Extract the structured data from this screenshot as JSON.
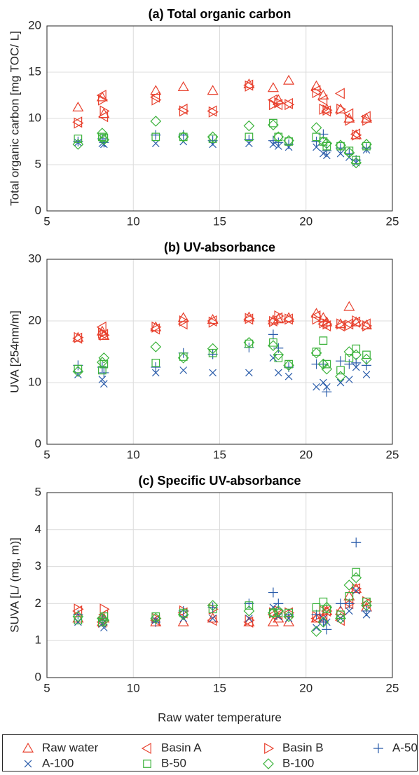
{
  "charts": [
    {
      "type": "scatter",
      "title": "(a) Total organic carbon",
      "ylabel": "Total organic carbon [mg TOC/ L]",
      "x": [
        6.8,
        8.2,
        8.3,
        11.3,
        12.9,
        14.6,
        16.7,
        18.1,
        18.4,
        19.0,
        20.6,
        21.0,
        21.2,
        22.0,
        22.5,
        22.9,
        23.5
      ],
      "xlim": [
        5,
        25
      ],
      "xticks": [
        5,
        10,
        15,
        20,
        25
      ],
      "ylim": [
        0,
        20
      ],
      "yticks": [
        0,
        5,
        10,
        15,
        20
      ],
      "grid": true,
      "series": [
        {
          "name": "Raw water",
          "color": "#e8412e",
          "marker": "triangle-up",
          "values": [
            11.2,
            12.3,
            10.5,
            13.0,
            13.4,
            13.0,
            13.7,
            13.3,
            12.0,
            14.1,
            13.5,
            12.5,
            11.0,
            11.0,
            10.0,
            8.2,
            10.0
          ]
        },
        {
          "name": "Basin A",
          "color": "#e8412e",
          "marker": "triangle-left",
          "values": [
            9.6,
            12.5,
            10.2,
            12.3,
            11.0,
            10.8,
            13.6,
            12.0,
            11.5,
            11.6,
            13.0,
            12.0,
            10.8,
            12.7,
            10.5,
            8.3,
            10.2
          ]
        },
        {
          "name": "Basin B",
          "color": "#e8412e",
          "marker": "triangle-right",
          "values": [
            9.5,
            12.0,
            10.8,
            12.0,
            10.8,
            10.7,
            13.5,
            11.5,
            11.7,
            11.5,
            12.8,
            11.0,
            10.9,
            11.0,
            9.8,
            8.2,
            9.8
          ]
        },
        {
          "name": "A-50",
          "color": "#2a5caa",
          "marker": "plus",
          "values": [
            7.5,
            7.8,
            7.4,
            8.2,
            8.2,
            7.6,
            7.7,
            7.6,
            7.4,
            7.2,
            7.5,
            8.3,
            6.5,
            6.8,
            6.2,
            5.5,
            6.8
          ]
        },
        {
          "name": "A-100",
          "color": "#2a5caa",
          "marker": "cross",
          "values": [
            7.4,
            7.3,
            7.2,
            7.3,
            7.5,
            7.2,
            7.3,
            7.2,
            7.0,
            6.9,
            6.9,
            6.2,
            6.0,
            6.2,
            5.8,
            5.2,
            6.6
          ]
        },
        {
          "name": "B-50",
          "color": "#3cb33c",
          "marker": "square",
          "values": [
            7.8,
            8.0,
            7.9,
            8.0,
            8.0,
            7.8,
            8.0,
            9.5,
            8.0,
            7.5,
            8.0,
            7.5,
            7.0,
            7.0,
            6.5,
            5.5,
            7.0
          ]
        },
        {
          "name": "B-100",
          "color": "#3cb33c",
          "marker": "diamond",
          "values": [
            7.2,
            8.4,
            7.7,
            9.7,
            8.0,
            8.0,
            9.2,
            9.3,
            8.0,
            7.6,
            9.0,
            7.5,
            7.3,
            7.1,
            6.3,
            5.2,
            7.2
          ]
        }
      ]
    },
    {
      "type": "scatter",
      "title": "(b) UV-absorbance",
      "ylabel": "UVA [254nm/m]",
      "x": [
        6.8,
        8.2,
        8.3,
        11.3,
        12.9,
        14.6,
        16.7,
        18.1,
        18.4,
        19.0,
        20.6,
        21.0,
        21.2,
        22.0,
        22.5,
        22.9,
        23.5
      ],
      "xlim": [
        5,
        25
      ],
      "xticks": [
        5,
        10,
        15,
        20,
        25
      ],
      "ylim": [
        0,
        30
      ],
      "yticks": [
        0,
        10,
        20,
        30
      ],
      "grid": true,
      "series": [
        {
          "name": "Raw water",
          "color": "#e8412e",
          "marker": "triangle-up",
          "values": [
            17.3,
            18.3,
            17.6,
            19.0,
            20.5,
            20.2,
            20.6,
            20.1,
            20.3,
            20.5,
            21.2,
            20.5,
            19.8,
            19.5,
            22.3,
            19.8,
            19.3
          ]
        },
        {
          "name": "Basin A",
          "color": "#e8412e",
          "marker": "triangle-left",
          "values": [
            17.2,
            19.0,
            17.8,
            18.7,
            19.5,
            20.0,
            20.3,
            20.0,
            20.5,
            20.3,
            20.8,
            19.5,
            19.2,
            19.2,
            19.5,
            19.8,
            19.5
          ]
        },
        {
          "name": "Basin B",
          "color": "#e8412e",
          "marker": "triangle-right",
          "values": [
            17.3,
            18.0,
            17.7,
            19.0,
            20.0,
            19.8,
            20.4,
            19.9,
            20.8,
            20.3,
            20.3,
            19.7,
            19.5,
            19.5,
            19.3,
            20.0,
            19.2
          ]
        },
        {
          "name": "A-50",
          "color": "#2a5caa",
          "marker": "plus",
          "values": [
            12.8,
            12.5,
            11.6,
            12.5,
            14.8,
            14.6,
            15.7,
            17.8,
            15.6,
            12.5,
            13.0,
            13.0,
            8.5,
            13.5,
            13.0,
            13.2,
            12.8
          ]
        },
        {
          "name": "A-100",
          "color": "#2a5caa",
          "marker": "cross",
          "values": [
            11.3,
            10.5,
            9.8,
            11.6,
            12.0,
            11.6,
            11.6,
            14.0,
            11.6,
            11.0,
            9.3,
            10.0,
            9.3,
            10.0,
            10.5,
            12.5,
            11.3
          ]
        },
        {
          "name": "B-50",
          "color": "#3cb33c",
          "marker": "square",
          "values": [
            12.2,
            12.0,
            13.0,
            13.2,
            14.2,
            14.8,
            16.3,
            16.5,
            14.0,
            13.0,
            15.0,
            16.8,
            13.0,
            12.0,
            14.0,
            15.5,
            14.5
          ]
        },
        {
          "name": "B-100",
          "color": "#3cb33c",
          "marker": "diamond",
          "values": [
            11.8,
            13.3,
            14.0,
            15.8,
            14.0,
            15.5,
            16.5,
            16.0,
            14.5,
            12.8,
            14.8,
            13.0,
            12.2,
            11.0,
            15.0,
            14.5,
            13.8
          ]
        }
      ]
    },
    {
      "type": "scatter",
      "title": "(c) Specific UV-absorbance",
      "ylabel": "SUVA [L/ (mg, m)]",
      "xlabel": "Raw water temperature",
      "x": [
        6.8,
        8.2,
        8.3,
        11.3,
        12.9,
        14.6,
        16.7,
        18.1,
        18.4,
        19.0,
        20.6,
        21.0,
        21.2,
        22.0,
        22.5,
        22.9,
        23.5
      ],
      "xlim": [
        5,
        25
      ],
      "xticks": [
        5,
        10,
        15,
        20,
        25
      ],
      "ylim": [
        0,
        5
      ],
      "yticks": [
        0,
        1,
        2,
        3,
        4,
        5
      ],
      "grid": true,
      "series": [
        {
          "name": "Raw water",
          "color": "#e8412e",
          "marker": "triangle-up",
          "values": [
            1.6,
            1.5,
            1.6,
            1.5,
            1.5,
            1.6,
            1.5,
            1.5,
            1.6,
            1.5,
            1.6,
            1.6,
            1.8,
            1.8,
            2.2,
            2.4,
            1.9
          ]
        },
        {
          "name": "Basin A",
          "color": "#e8412e",
          "marker": "triangle-left",
          "values": [
            1.8,
            1.5,
            1.7,
            1.55,
            1.75,
            1.55,
            1.5,
            1.7,
            1.7,
            1.75,
            1.6,
            1.6,
            1.8,
            1.55,
            2.0,
            2.4,
            2.0
          ]
        },
        {
          "name": "Basin B",
          "color": "#e8412e",
          "marker": "triangle-right",
          "values": [
            1.85,
            1.5,
            1.85,
            1.6,
            1.8,
            1.85,
            1.55,
            1.75,
            1.8,
            1.75,
            1.65,
            1.8,
            1.8,
            1.7,
            2.0,
            2.4,
            2.05
          ]
        },
        {
          "name": "A-50",
          "color": "#2a5caa",
          "marker": "plus",
          "values": [
            1.7,
            1.6,
            1.55,
            1.5,
            1.8,
            1.9,
            2.0,
            2.3,
            2.0,
            1.7,
            1.7,
            1.5,
            1.3,
            2.0,
            2.0,
            3.65,
            1.8
          ]
        },
        {
          "name": "A-100",
          "color": "#2a5caa",
          "marker": "cross",
          "values": [
            1.5,
            1.45,
            1.35,
            1.55,
            1.6,
            1.6,
            1.6,
            1.9,
            1.65,
            1.6,
            1.35,
            1.6,
            1.5,
            1.6,
            1.8,
            2.35,
            1.7
          ]
        },
        {
          "name": "B-50",
          "color": "#3cb33c",
          "marker": "square",
          "values": [
            1.55,
            1.5,
            1.65,
            1.65,
            1.75,
            1.85,
            1.95,
            1.75,
            1.75,
            1.75,
            1.9,
            2.05,
            1.85,
            1.7,
            2.2,
            2.85,
            2.05
          ]
        },
        {
          "name": "B-100",
          "color": "#3cb33c",
          "marker": "diamond",
          "values": [
            1.65,
            1.6,
            1.55,
            1.6,
            1.7,
            1.95,
            1.8,
            1.75,
            1.8,
            1.65,
            1.25,
            1.5,
            1.9,
            1.6,
            2.5,
            2.7,
            1.95
          ]
        }
      ]
    }
  ]
}
